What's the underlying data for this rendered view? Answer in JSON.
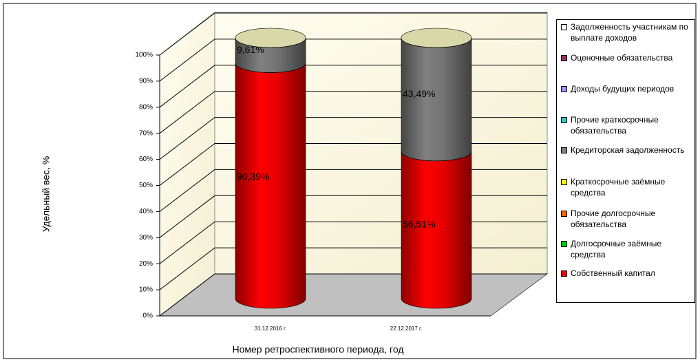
{
  "chart_data": {
    "type": "cylinder_stacked_3d",
    "ylabel": "Удельный вес, %",
    "xlabel": "Номер ретроспективного периода, год",
    "categories": [
      "31.12.2016 г.",
      "22.12.2017 г."
    ],
    "ylim": [
      0,
      100
    ],
    "yticks": [
      {
        "value": 0,
        "label": "0%"
      },
      {
        "value": 10,
        "label": "10%"
      },
      {
        "value": 20,
        "label": "20%"
      },
      {
        "value": 30,
        "label": "30%"
      },
      {
        "value": 40,
        "label": "40%"
      },
      {
        "value": 50,
        "label": "50%"
      },
      {
        "value": 60,
        "label": "60%"
      },
      {
        "value": 70,
        "label": "70%"
      },
      {
        "value": 80,
        "label": "80%"
      },
      {
        "value": 90,
        "label": "90%"
      },
      {
        "value": 100,
        "label": "100%"
      }
    ],
    "grid": true,
    "legend": "right",
    "series": [
      {
        "name": "Собственный капитал",
        "color": "#ff0000",
        "values": [
          90.39,
          56.51
        ],
        "value_labels": [
          "90,39%",
          "56,51%"
        ]
      },
      {
        "name": "Долгосрочные заёмные средства",
        "color": "#00cc00",
        "values": [
          0,
          0
        ]
      },
      {
        "name": "Прочие долгосрочные обязательства",
        "color": "#ff6600",
        "values": [
          0,
          0
        ]
      },
      {
        "name": "Краткосрочные заёмные средства",
        "color": "#ffff00",
        "values": [
          0,
          0
        ]
      },
      {
        "name": "Кредиторская задолженность",
        "color": "#808080",
        "values": [
          9.61,
          43.49
        ],
        "value_labels": [
          "9,61%",
          "43,49%"
        ]
      },
      {
        "name": "Прочие краткосрочные обязательства",
        "color": "#33cccc",
        "values": [
          0,
          0
        ]
      },
      {
        "name": "Доходы будущих периодов",
        "color": "#9999ff",
        "values": [
          0,
          0
        ]
      },
      {
        "name": "Оценочные обязательства",
        "color": "#993366",
        "values": [
          0,
          0
        ]
      },
      {
        "name": "Задолженность участникам по выплате доходов",
        "color": "#ffffff",
        "values": [
          0,
          0
        ]
      }
    ]
  }
}
